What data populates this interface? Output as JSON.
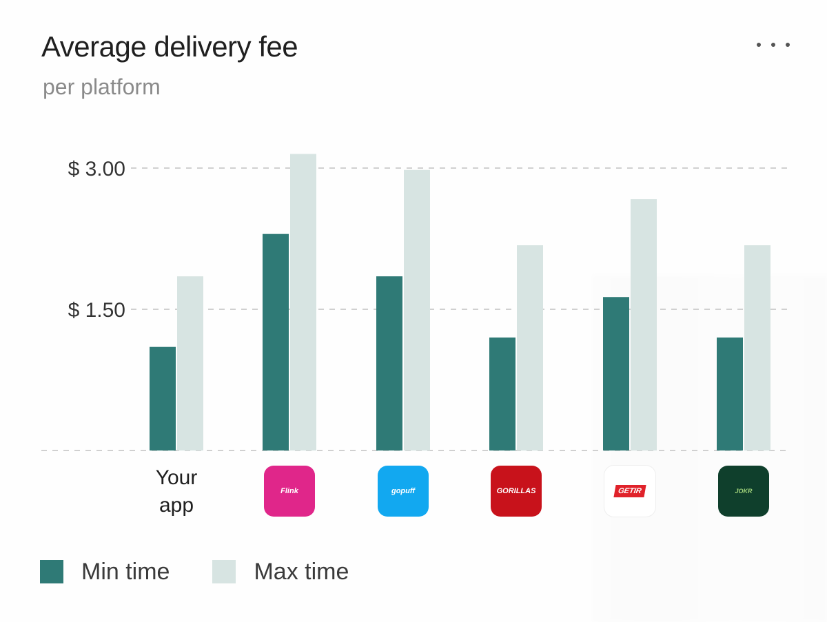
{
  "title": "Average delivery fee",
  "subtitle": "per platform",
  "legend": {
    "min_label": "Min time",
    "max_label": "Max time"
  },
  "colors": {
    "min": "#2f7a76",
    "max": "#d7e4e2",
    "grid": "#d0d0d0",
    "text": "#1f1f1f"
  },
  "chart_data": {
    "type": "bar",
    "title": "Average delivery fee",
    "subtitle": "per platform",
    "xlabel": "",
    "ylabel": "",
    "ylim": [
      0,
      3.0
    ],
    "ytick_labels": [
      "$ 1.50",
      "$ 3.00"
    ],
    "ytick_values": [
      1.5,
      3.0
    ],
    "grid": true,
    "legend_position": "bottom-left",
    "categories": [
      "Your app",
      "Flink",
      "Gopuff",
      "Gorillas",
      "Getir",
      "Jokr"
    ],
    "category_labels": [
      {
        "kind": "text",
        "text": "Your app",
        "line1": "Your",
        "line2": "app"
      },
      {
        "kind": "logo",
        "icon": "flink-logo-icon",
        "color": "#e0268a",
        "text": "Flink"
      },
      {
        "kind": "logo",
        "icon": "gopuff-logo-icon",
        "color": "#12a8f0",
        "text": "gopuff"
      },
      {
        "kind": "logo",
        "icon": "gorillas-logo-icon",
        "color": "#c8121b",
        "text": "GORILLAS"
      },
      {
        "kind": "logo",
        "icon": "getir-logo-icon",
        "color": "#ffffff",
        "text": "GETIR"
      },
      {
        "kind": "logo",
        "icon": "jokr-logo-icon",
        "color": "#0f3f2c",
        "text": "JOKR"
      }
    ],
    "series": [
      {
        "name": "Min time",
        "values": [
          1.1,
          2.3,
          1.85,
          1.2,
          1.63,
          1.2
        ]
      },
      {
        "name": "Max time",
        "values": [
          1.85,
          3.15,
          2.98,
          2.18,
          2.67,
          2.18
        ]
      }
    ]
  }
}
